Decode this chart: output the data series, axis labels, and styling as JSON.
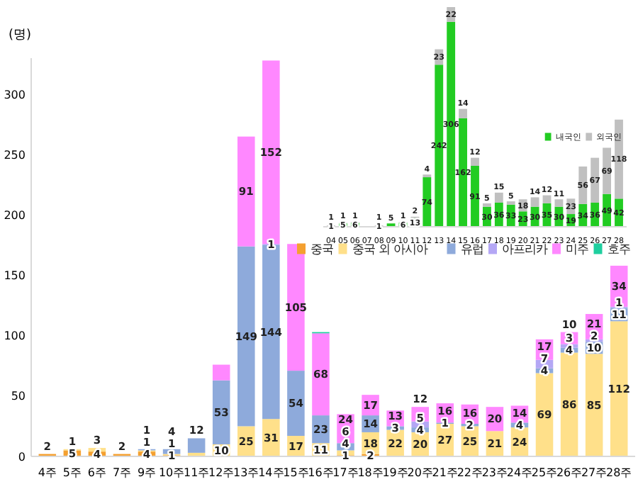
{
  "chart_data": [
    {
      "type": "bar",
      "stacked": true,
      "ylabel": "(명)",
      "ylim": [
        0,
        330
      ],
      "yticks": [
        0,
        50,
        100,
        150,
        200,
        250,
        300
      ],
      "legend": "right",
      "categories": [
        "4주",
        "5주",
        "6주",
        "7주",
        "9주",
        "10주",
        "11주",
        "12주",
        "13주",
        "14주",
        "15주",
        "16주",
        "17주",
        "18주",
        "19주",
        "20주",
        "21주",
        "22주",
        "23주",
        "24주",
        "25주",
        "26주",
        "27주",
        "28주"
      ],
      "series": [
        {
          "name": "중국",
          "color": "#f4a030",
          "values": [
            2,
            5,
            4,
            2,
            4,
            1,
            null,
            null,
            null,
            null,
            null,
            null,
            1,
            2,
            null,
            null,
            null,
            null,
            null,
            null,
            null,
            null,
            null,
            null
          ],
          "value_labels": [
            "2",
            "5",
            "4",
            "2",
            "4",
            "1",
            null,
            null,
            null,
            null,
            null,
            null,
            "1",
            "2",
            null,
            null,
            null,
            null,
            null,
            null,
            null,
            null,
            null,
            null
          ]
        },
        {
          "name": "중국 외 아시아",
          "color": "#ffe08a",
          "values": [
            null,
            1,
            3,
            null,
            1,
            1,
            3,
            10,
            25,
            31,
            17,
            11,
            4,
            18,
            22,
            20,
            27,
            25,
            21,
            24,
            69,
            86,
            85,
            112
          ],
          "value_labels": [
            null,
            "1",
            "3",
            null,
            "1",
            "1",
            null,
            "10",
            "25",
            "31",
            "17",
            "11",
            "4",
            "18",
            "22",
            "20",
            "27",
            "25",
            "21",
            "24",
            "69",
            "86",
            "85",
            "112"
          ]
        },
        {
          "name": "유럽",
          "color": "#8eaadb",
          "values": [
            null,
            null,
            null,
            null,
            1,
            4,
            12,
            53,
            149,
            144,
            54,
            23,
            6,
            14,
            3,
            4,
            1,
            2,
            null,
            4,
            4,
            4,
            10,
            11
          ],
          "value_labels": [
            null,
            null,
            null,
            null,
            "1",
            "4",
            "12",
            "53",
            "149",
            "144",
            "54",
            "23",
            "6",
            "14",
            "3",
            "4",
            "1",
            "2",
            null,
            "4",
            "4",
            "4",
            "10",
            "11"
          ]
        },
        {
          "name": "아프리카",
          "color": "#b4a7f5",
          "values": [
            null,
            null,
            null,
            null,
            null,
            null,
            null,
            null,
            null,
            1,
            null,
            null,
            null,
            null,
            null,
            5,
            null,
            null,
            null,
            null,
            7,
            3,
            2,
            1
          ],
          "value_labels": [
            null,
            null,
            null,
            null,
            null,
            null,
            null,
            null,
            null,
            "1",
            null,
            null,
            null,
            null,
            null,
            "5",
            null,
            null,
            null,
            null,
            "7",
            "3",
            "2",
            "1"
          ]
        },
        {
          "name": "미주",
          "color": "#ff88ff",
          "values": [
            null,
            null,
            null,
            null,
            null,
            null,
            null,
            13,
            91,
            152,
            105,
            68,
            24,
            17,
            13,
            12,
            16,
            16,
            20,
            14,
            17,
            10,
            21,
            34
          ],
          "value_labels": [
            null,
            null,
            null,
            null,
            null,
            null,
            null,
            null,
            "91",
            "152",
            "105",
            "68",
            "24",
            "17",
            "13",
            "12",
            "16",
            "16",
            "20",
            "14",
            "17",
            "10",
            "21",
            "34"
          ]
        },
        {
          "name": "호주",
          "color": "#1fcf9f",
          "values": [
            null,
            null,
            null,
            null,
            null,
            null,
            null,
            null,
            null,
            null,
            null,
            1,
            null,
            null,
            null,
            null,
            null,
            null,
            null,
            null,
            null,
            null,
            null,
            null
          ],
          "value_labels": [
            null,
            null,
            null,
            null,
            null,
            null,
            null,
            null,
            null,
            null,
            null,
            null,
            null,
            null,
            null,
            null,
            null,
            null,
            null,
            null,
            null,
            null,
            null,
            null
          ]
        }
      ]
    },
    {
      "type": "bar",
      "stacked": true,
      "data_labels": true,
      "legend": "right",
      "tick_labels": "x",
      "categories": [
        "04",
        "05",
        "06",
        "07",
        "08",
        "09",
        "10",
        "11",
        "12",
        "13",
        "14",
        "15",
        "16",
        "17",
        "18",
        "19",
        "20",
        "21",
        "22",
        "23",
        "24",
        "25",
        "26",
        "27",
        "28"
      ],
      "series": [
        {
          "name": "내국인",
          "color": "#22cc22",
          "values": [
            1,
            5,
            6,
            null,
            1,
            5,
            6,
            13,
            74,
            242,
            306,
            162,
            91,
            30,
            36,
            33,
            23,
            30,
            35,
            30,
            19,
            34,
            36,
            49,
            42
          ]
        },
        {
          "name": "외국인",
          "color": "#c0c0c0",
          "values": [
            1,
            1,
            1,
            null,
            1,
            null,
            1,
            2,
            4,
            23,
            22,
            14,
            12,
            5,
            15,
            5,
            18,
            14,
            12,
            11,
            23,
            56,
            67,
            69,
            118
          ]
        }
      ]
    }
  ]
}
